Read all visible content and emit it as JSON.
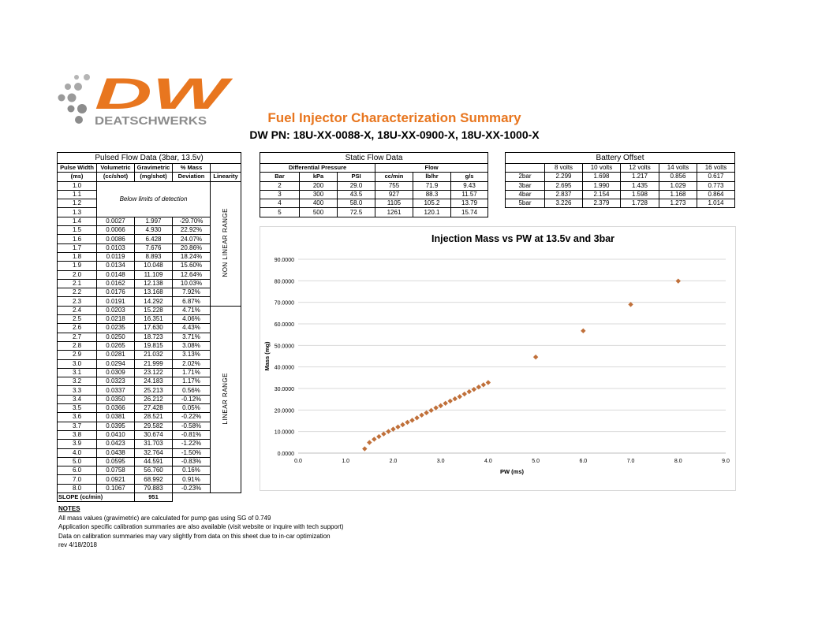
{
  "brand": {
    "logo_mark": "DW",
    "logo_name": "DEATSCHWERKS",
    "orange": "#e8761f",
    "gray": "#8c8c8c"
  },
  "doc": {
    "title": "Fuel Injector Characterization Summary",
    "subtitle": "DW PN: 18U-XX-0088-X, 18U-XX-0900-X, 18U-XX-1000-X"
  },
  "pulsed": {
    "title": "Pulsed Flow Data (3bar, 13.5v)",
    "headers_top": [
      "Pulse Width",
      "Volumetric",
      "Gravimetric",
      "% Mass",
      ""
    ],
    "headers_bottom": [
      "(ms)",
      "(cc/shot)",
      "(mg/shot)",
      "Deviation",
      "Linearity"
    ],
    "below_limits": "Below limits of detection",
    "pw_below": [
      "1.0",
      "1.1",
      "1.2",
      "1.3"
    ],
    "nonlinear_label": "NON LINEAR RANGE",
    "linear_label": "LINEAR RANGE",
    "rows": [
      [
        "1.4",
        "0.0027",
        "1.997",
        "-29.70%"
      ],
      [
        "1.5",
        "0.0066",
        "4.930",
        "22.92%"
      ],
      [
        "1.6",
        "0.0086",
        "6.428",
        "24.07%"
      ],
      [
        "1.7",
        "0.0103",
        "7.676",
        "20.86%"
      ],
      [
        "1.8",
        "0.0119",
        "8.893",
        "18.24%"
      ],
      [
        "1.9",
        "0.0134",
        "10.048",
        "15.60%"
      ],
      [
        "2.0",
        "0.0148",
        "11.109",
        "12.64%"
      ],
      [
        "2.1",
        "0.0162",
        "12.138",
        "10.03%"
      ],
      [
        "2.2",
        "0.0176",
        "13.168",
        "7.92%"
      ],
      [
        "2.3",
        "0.0191",
        "14.292",
        "6.87%"
      ],
      [
        "2.4",
        "0.0203",
        "15.228",
        "4.71%"
      ],
      [
        "2.5",
        "0.0218",
        "16.351",
        "4.06%"
      ],
      [
        "2.6",
        "0.0235",
        "17.630",
        "4.43%"
      ],
      [
        "2.7",
        "0.0250",
        "18.723",
        "3.71%"
      ],
      [
        "2.8",
        "0.0265",
        "19.815",
        "3.08%"
      ],
      [
        "2.9",
        "0.0281",
        "21.032",
        "3.13%"
      ],
      [
        "3.0",
        "0.0294",
        "21.999",
        "2.02%"
      ],
      [
        "3.1",
        "0.0309",
        "23.122",
        "1.71%"
      ],
      [
        "3.2",
        "0.0323",
        "24.183",
        "1.17%"
      ],
      [
        "3.3",
        "0.0337",
        "25.213",
        "0.56%"
      ],
      [
        "3.4",
        "0.0350",
        "26.212",
        "-0.12%"
      ],
      [
        "3.5",
        "0.0366",
        "27.428",
        "0.05%"
      ],
      [
        "3.6",
        "0.0381",
        "28.521",
        "-0.22%"
      ],
      [
        "3.7",
        "0.0395",
        "29.582",
        "-0.58%"
      ],
      [
        "3.8",
        "0.0410",
        "30.674",
        "-0.81%"
      ],
      [
        "3.9",
        "0.0423",
        "31.703",
        "-1.22%"
      ],
      [
        "4.0",
        "0.0438",
        "32.764",
        "-1.50%"
      ],
      [
        "5.0",
        "0.0595",
        "44.591",
        "-0.83%"
      ],
      [
        "6.0",
        "0.0758",
        "56.760",
        "0.16%"
      ],
      [
        "7.0",
        "0.0921",
        "68.992",
        "0.91%"
      ],
      [
        "8.0",
        "0.1067",
        "79.883",
        "-0.23%"
      ]
    ],
    "slope_label": "SLOPE (cc/min)",
    "slope_value": "951"
  },
  "static": {
    "title": "Static Flow Data",
    "group_dp": "Differential Pressure",
    "group_flow": "Flow",
    "headers": [
      "Bar",
      "kPa",
      "PSI",
      "cc/min",
      "lb/hr",
      "g/s"
    ],
    "rows": [
      [
        "2",
        "200",
        "29.0",
        "755",
        "71.9",
        "9.43"
      ],
      [
        "3",
        "300",
        "43.5",
        "927",
        "88.3",
        "11.57"
      ],
      [
        "4",
        "400",
        "58.0",
        "1105",
        "105.2",
        "13.79"
      ],
      [
        "5",
        "500",
        "72.5",
        "1261",
        "120.1",
        "15.74"
      ]
    ]
  },
  "battery": {
    "title": "Battery Offset",
    "headers": [
      "",
      "8 volts",
      "10 volts",
      "12 volts",
      "14 volts",
      "16 volts"
    ],
    "rows": [
      [
        "2bar",
        "2.299",
        "1.698",
        "1.217",
        "0.856",
        "0.617"
      ],
      [
        "3bar",
        "2.695",
        "1.990",
        "1.435",
        "1.029",
        "0.773"
      ],
      [
        "4bar",
        "2.837",
        "2.154",
        "1.598",
        "1.168",
        "0.864"
      ],
      [
        "5bar",
        "3.226",
        "2.379",
        "1.728",
        "1.273",
        "1.014"
      ]
    ]
  },
  "notes": {
    "heading": "NOTES",
    "lines": [
      "All mass values (gravimetric) are calculated for pump gas using SG of 0.749",
      "Application specific calibration summaries are also available (visit website or inquire with tech support)",
      "Data on calibration summaries may vary slightly from data on this sheet due to in-car optimization",
      "rev 4/18/2018"
    ]
  },
  "chart_data": {
    "type": "scatter",
    "title": "Injection Mass vs PW at 13.5v and 3bar",
    "xlabel": "PW (ms)",
    "ylabel": "Mass (mg)",
    "xlim": [
      0,
      9
    ],
    "ylim": [
      0,
      90
    ],
    "xticks": [
      "0.0",
      "1.0",
      "2.0",
      "3.0",
      "4.0",
      "5.0",
      "6.0",
      "7.0",
      "8.0",
      "9.0"
    ],
    "yticks": [
      "0.0000",
      "10.0000",
      "20.0000",
      "30.0000",
      "40.0000",
      "50.0000",
      "60.0000",
      "70.0000",
      "80.0000",
      "90.0000"
    ],
    "grid": "horizontal",
    "marker_color": "#c0703a",
    "grid_color": "#d9d9d9",
    "x": [
      1.4,
      1.5,
      1.6,
      1.7,
      1.8,
      1.9,
      2.0,
      2.1,
      2.2,
      2.3,
      2.4,
      2.5,
      2.6,
      2.7,
      2.8,
      2.9,
      3.0,
      3.1,
      3.2,
      3.3,
      3.4,
      3.5,
      3.6,
      3.7,
      3.8,
      3.9,
      4.0,
      5.0,
      6.0,
      7.0,
      8.0
    ],
    "y": [
      1.997,
      4.93,
      6.428,
      7.676,
      8.893,
      10.048,
      11.109,
      12.138,
      13.168,
      14.292,
      15.228,
      16.351,
      17.63,
      18.723,
      19.815,
      21.032,
      21.999,
      23.122,
      24.183,
      25.213,
      26.212,
      27.428,
      28.521,
      29.582,
      30.674,
      31.703,
      32.764,
      44.591,
      56.76,
      68.992,
      79.883
    ]
  }
}
